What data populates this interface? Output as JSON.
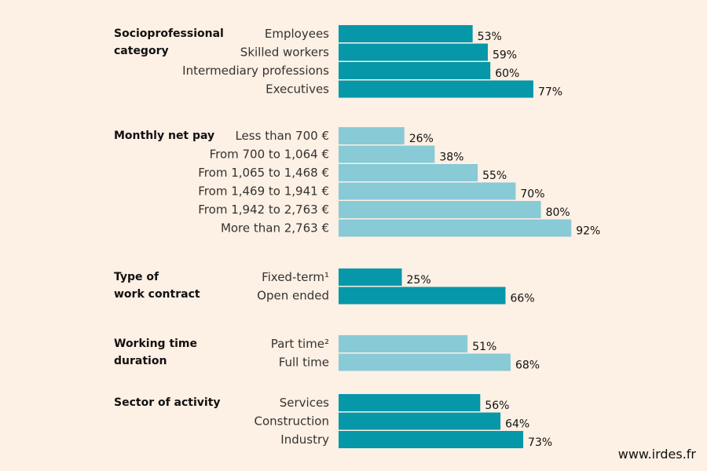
{
  "colors": {
    "dark": "#0697a9",
    "light": "#88cad6",
    "background": "#fdf0e4"
  },
  "credit": "www.irdes.fr",
  "chart_data": {
    "type": "bar",
    "orientation": "horizontal",
    "value_unit": "%",
    "groups": [
      {
        "title_lines": [
          "Socioprofessional",
          "category"
        ],
        "color": "dark",
        "categories": [
          "Employees",
          "Skilled workers",
          "Intermediary professions",
          "Executives"
        ],
        "values": [
          53,
          59,
          60,
          77
        ],
        "labels": [
          "53%",
          "59%",
          "60%",
          "77%"
        ]
      },
      {
        "title_lines": [
          "Monthly net pay"
        ],
        "color": "light",
        "categories": [
          "Less than 700 €",
          "From 700 to 1,064 €",
          "From 1,065 to 1,468 €",
          "From 1,469 to 1,941 €",
          "From 1,942 to 2,763 €",
          "More than 2,763 €"
        ],
        "values": [
          26,
          38,
          55,
          70,
          80,
          92
        ],
        "labels": [
          "26%",
          "38%",
          "55%",
          "70%",
          "80%",
          "92%"
        ]
      },
      {
        "title_lines": [
          "Type of",
          "work contract"
        ],
        "color": "dark",
        "categories": [
          "Fixed-term¹",
          "Open ended"
        ],
        "values": [
          25,
          66
        ],
        "labels": [
          "25%",
          "66%"
        ]
      },
      {
        "title_lines": [
          "Working time",
          "duration"
        ],
        "color": "light",
        "categories": [
          "Part time²",
          "Full time"
        ],
        "values": [
          51,
          68
        ],
        "labels": [
          "51%",
          "68%"
        ]
      },
      {
        "title_lines": [
          "Sector of activity"
        ],
        "color": "dark",
        "categories": [
          "Services",
          "Construction",
          "Industry"
        ],
        "values": [
          56,
          64,
          73
        ],
        "labels": [
          "56%",
          "64%",
          "73%"
        ]
      }
    ]
  }
}
